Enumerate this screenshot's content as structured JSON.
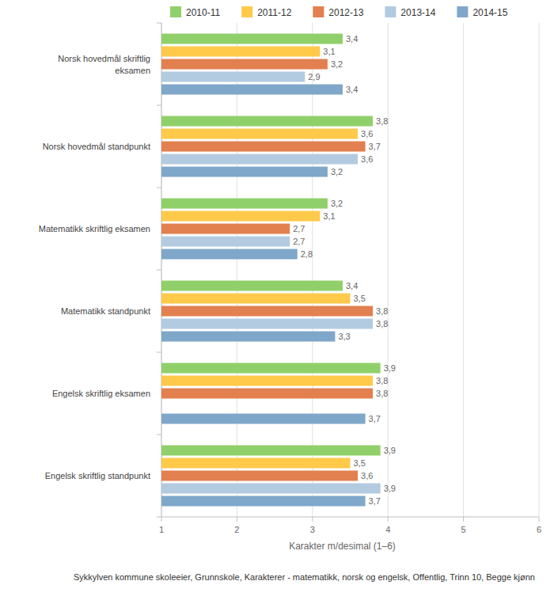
{
  "chart_data": {
    "type": "bar",
    "orientation": "horizontal",
    "categories": [
      "Norsk hovedmål skriftlig eksamen",
      "Norsk hovedmål standpunkt",
      "Matematikk skriftlig eksamen",
      "Matematikk standpunkt",
      "Engelsk skriftlig eksamen",
      "Engelsk skriftlig standpunkt"
    ],
    "series": [
      {
        "name": "2010-11",
        "color": "#90d06a",
        "values": [
          3.4,
          3.8,
          3.2,
          3.4,
          3.9,
          3.9
        ],
        "value_labels": [
          "3,4",
          "3,8",
          "3,2",
          "3,4",
          "3,9",
          "3,9"
        ]
      },
      {
        "name": "2011-12",
        "color": "#ffc94a",
        "values": [
          3.1,
          3.6,
          3.1,
          3.5,
          3.8,
          3.5
        ],
        "value_labels": [
          "3,1",
          "3,6",
          "3,1",
          "3,5",
          "3,8",
          "3,5"
        ]
      },
      {
        "name": "2012-13",
        "color": "#e2804f",
        "values": [
          3.2,
          3.7,
          2.7,
          3.8,
          3.8,
          3.6
        ],
        "value_labels": [
          "3,2",
          "3,7",
          "2,7",
          "3,8",
          "3,8",
          "3,6"
        ]
      },
      {
        "name": "2013-14",
        "color": "#b3cbe0",
        "values": [
          2.9,
          3.6,
          2.7,
          3.8,
          null,
          3.9
        ],
        "value_labels": [
          "2,9",
          "3,6",
          "2,7",
          "3,8",
          null,
          "3,9"
        ]
      },
      {
        "name": "2014-15",
        "color": "#7fa7c9",
        "values": [
          3.4,
          3.2,
          2.8,
          3.3,
          3.7,
          3.7
        ],
        "value_labels": [
          "3,4",
          "3,2",
          "2,8",
          "3,3",
          "3,7",
          "3,7"
        ]
      }
    ],
    "x_label": "Karakter m/desimal (1–6)",
    "caption": "Sykkylven kommune skoleeier, Grunnskole, Karakterer - matematikk, norsk og engelsk, Offentlig, Trinn 10, Begge kjønn",
    "xlim": [
      1,
      6
    ],
    "xticks": [
      1,
      2,
      3,
      4,
      5,
      6
    ],
    "grid": true,
    "legend": "top",
    "data_labels": true
  }
}
